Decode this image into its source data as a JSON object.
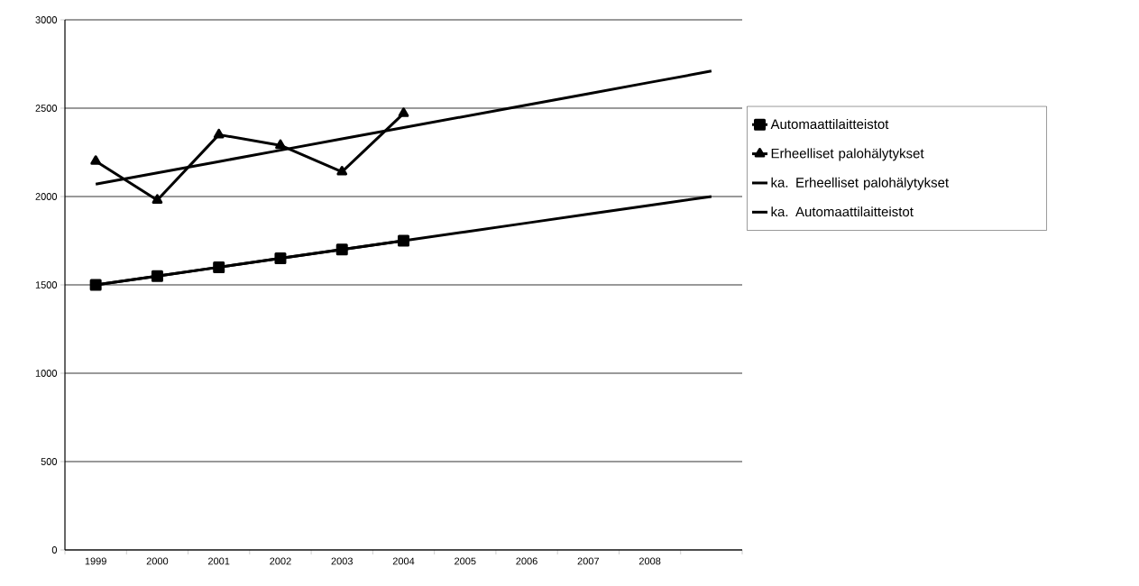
{
  "chart_data": {
    "type": "line",
    "categories": [
      "1999",
      "2000",
      "2001",
      "2002",
      "2003",
      "2004",
      "2005",
      "2006",
      "2007",
      "2008",
      null
    ],
    "series": [
      {
        "name": "Automaattilaitteistot",
        "color": "#000000",
        "marker": "square",
        "values": [
          1500,
          1550,
          1600,
          1650,
          1700,
          1750,
          null,
          null,
          null,
          null,
          null
        ]
      },
      {
        "name": "Erheelliset palohälytykset",
        "color": "#000000",
        "marker": "triangle",
        "values": [
          2200,
          1980,
          2350,
          2290,
          2140,
          2470,
          null,
          null,
          null,
          null,
          null
        ]
      },
      {
        "name": "ka. Erheelliset palohälytykset",
        "color": "#000000",
        "marker": "none",
        "values": [
          2070,
          2134,
          2198,
          2262,
          2326,
          2390,
          2454,
          2518,
          2582,
          2646,
          2710
        ]
      },
      {
        "name": "ka. Automaattilaitteistot",
        "color": "#000000",
        "marker": "none",
        "values": [
          1500,
          1550,
          1600,
          1650,
          1700,
          1750,
          1800,
          1850,
          1900,
          1950,
          2000
        ]
      }
    ],
    "ylim": [
      0,
      3000
    ],
    "yticks": [
      0,
      500,
      1000,
      1500,
      2000,
      2500,
      3000
    ],
    "grid": "y",
    "legend": "right"
  }
}
